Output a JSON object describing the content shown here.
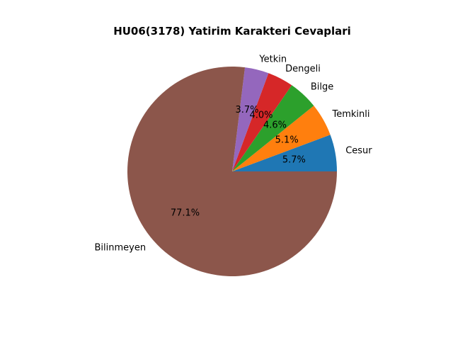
{
  "chart_data": {
    "type": "pie",
    "title": "HU06(3178) Yatirim Karakteri Cevaplari",
    "slices": [
      {
        "label": "Cesur",
        "value": 5.7,
        "pct_label": "5.7%",
        "color": "#1f77b4"
      },
      {
        "label": "Temkinli",
        "value": 5.1,
        "pct_label": "5.1%",
        "color": "#ff7f0e"
      },
      {
        "label": "Bilge",
        "value": 4.6,
        "pct_label": "4.6%",
        "color": "#2ca02c"
      },
      {
        "label": "Dengeli",
        "value": 4.0,
        "pct_label": "4.0%",
        "color": "#d62728"
      },
      {
        "label": "Yetkin",
        "value": 3.7,
        "pct_label": "3.7%",
        "color": "#9467bd"
      },
      {
        "label": "Bilinmeyen",
        "value": 77.1,
        "pct_label": "77.1%",
        "color": "#8c564b"
      }
    ],
    "start_angle_deg": 0,
    "direction": "counterclockwise"
  }
}
